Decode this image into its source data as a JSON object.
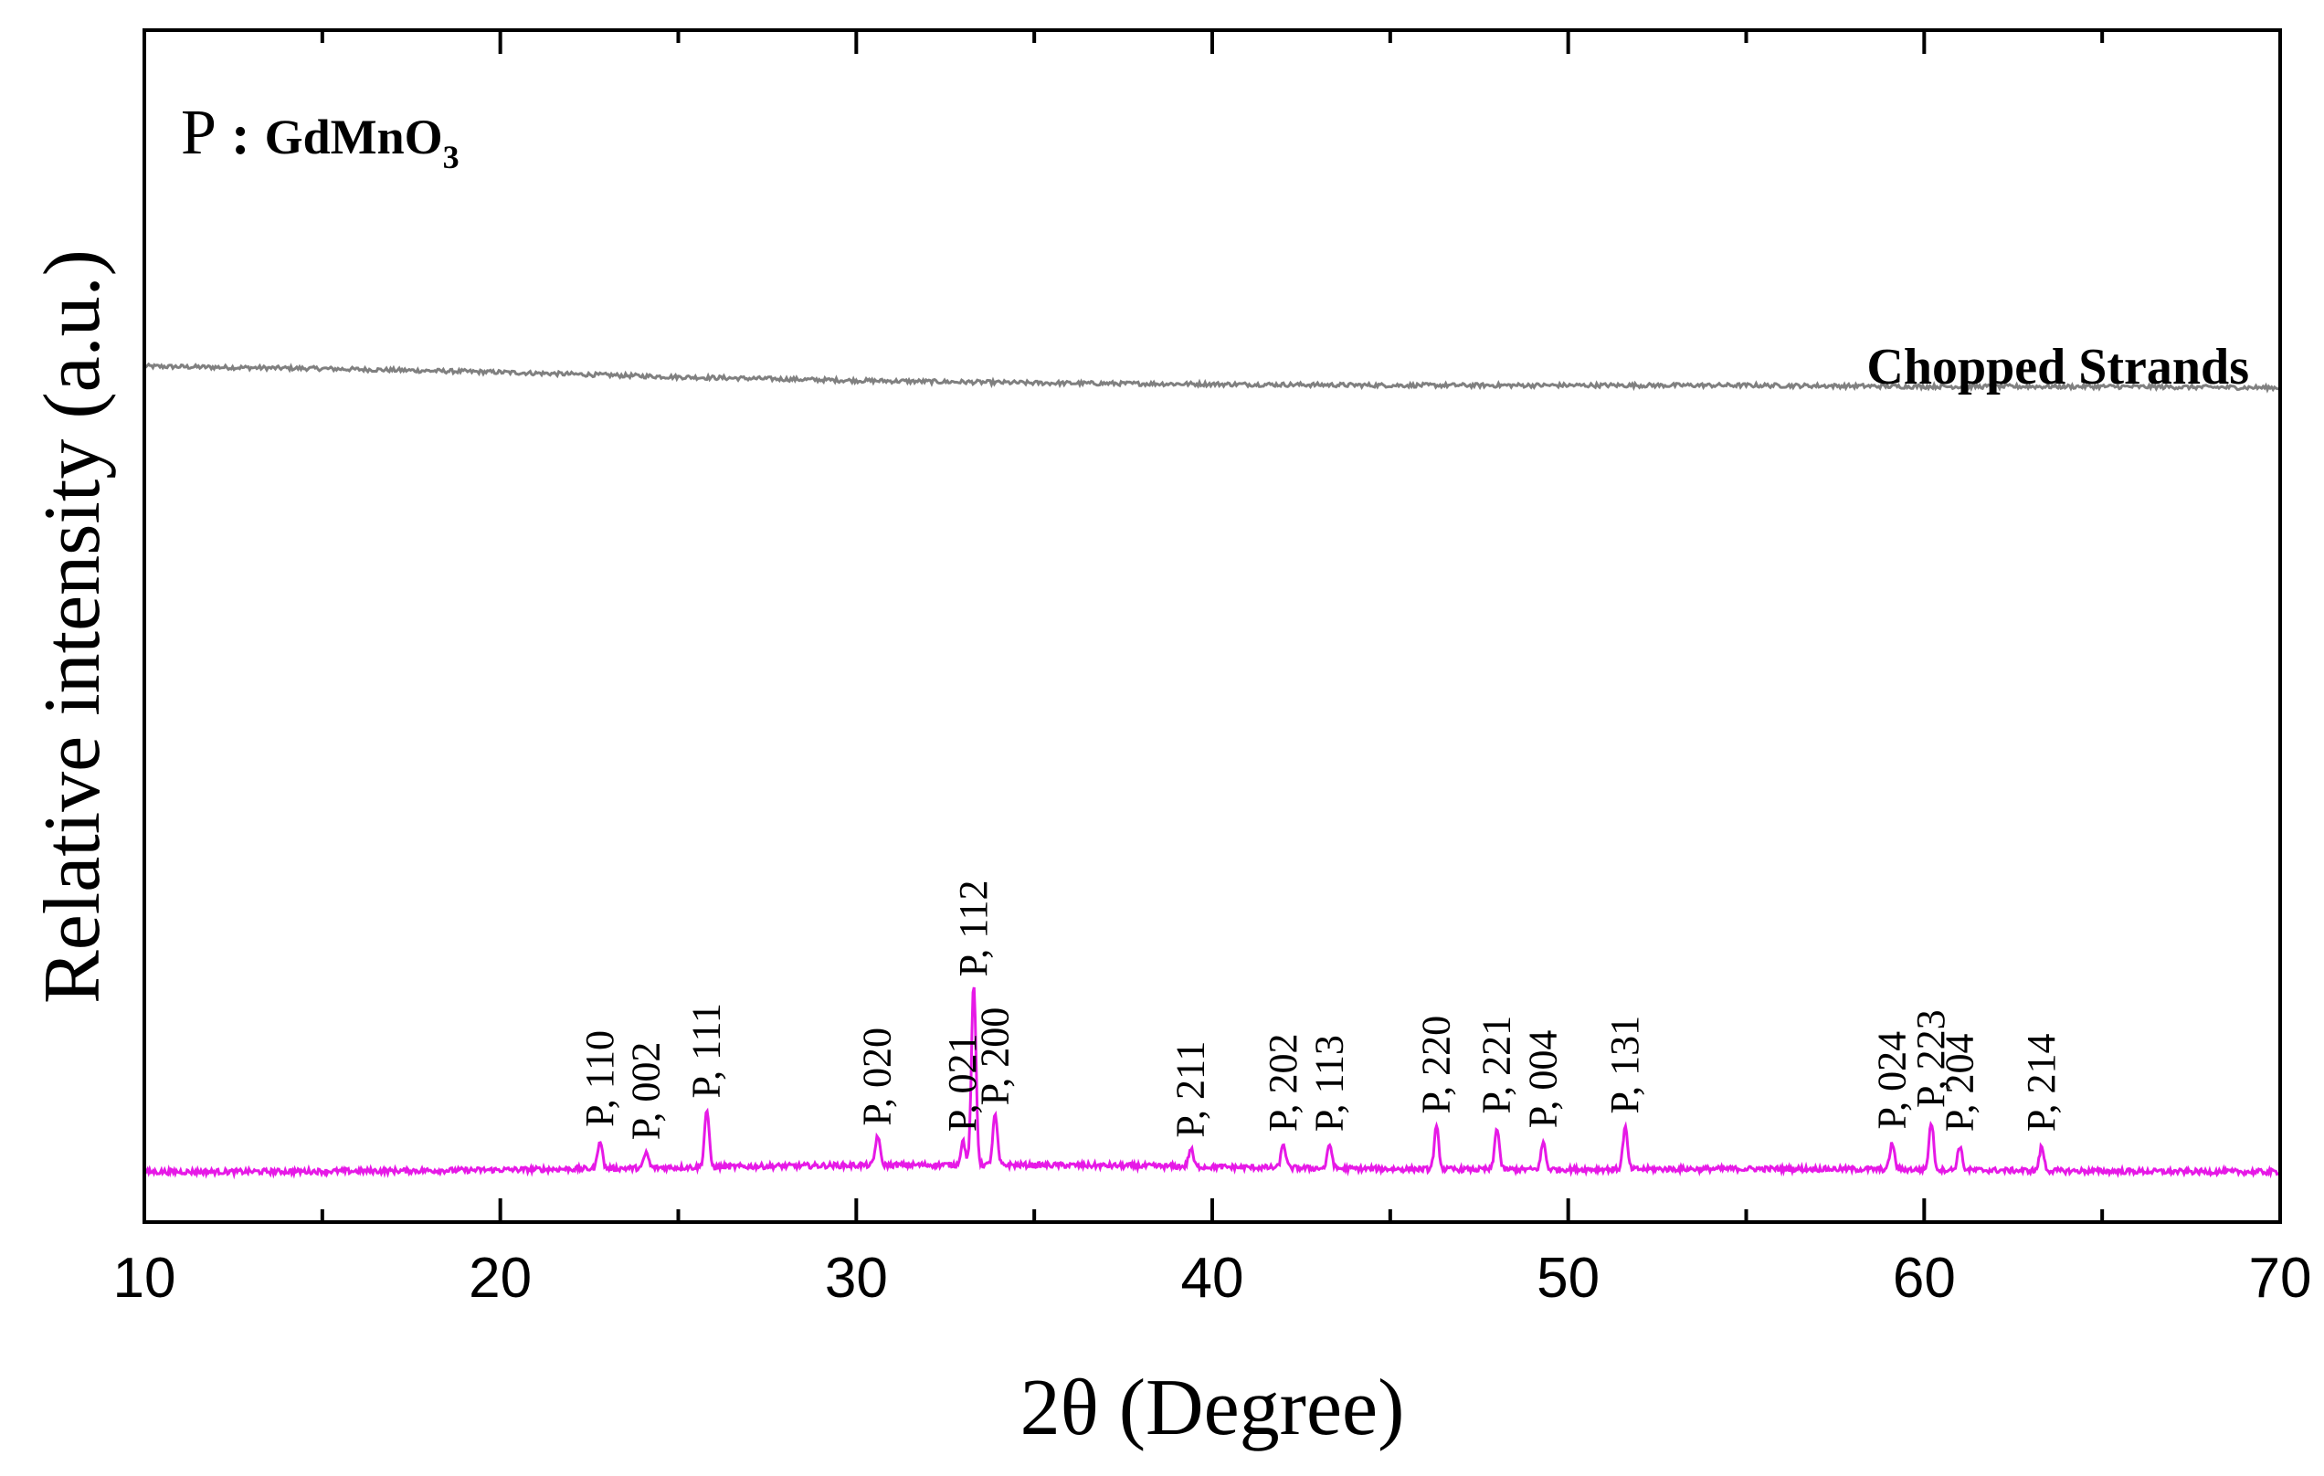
{
  "chart_data": {
    "type": "line",
    "title": "",
    "xlabel": "2θ (Degree)",
    "ylabel": "Relative intensity (a.u.)",
    "xlim": [
      10,
      70
    ],
    "ylim": [
      0,
      100
    ],
    "x_ticks": [
      10,
      20,
      30,
      40,
      50,
      60,
      70
    ],
    "x_minor_ticks": [
      15,
      25,
      35,
      45,
      55,
      65
    ],
    "show_y_tick_labels": false,
    "grid": false,
    "legend": {
      "symbol": "P",
      "separator": ":",
      "compound": "GdMnO",
      "subscript": "3"
    },
    "series": [
      {
        "name": "Chopped Strands",
        "color": "#808080",
        "kind": "amorphous",
        "x": [
          10,
          15,
          20,
          25,
          30,
          35,
          40,
          45,
          50,
          55,
          60,
          65,
          70
        ],
        "y": [
          71.8,
          71.6,
          71.3,
          70.9,
          70.6,
          70.4,
          70.3,
          70.2,
          70.2,
          70.2,
          70.1,
          70.1,
          70.0
        ]
      },
      {
        "name": "GdMnO3",
        "color": "#e619e6",
        "kind": "peaks",
        "baseline": 4.2,
        "peaks": [
          {
            "label": "P, 110",
            "x": 22.8,
            "height": 2.4
          },
          {
            "label": "P, 002",
            "x": 24.1,
            "height": 1.3
          },
          {
            "label": "P, 111",
            "x": 25.8,
            "height": 4.8
          },
          {
            "label": "P, 020",
            "x": 30.6,
            "height": 2.5
          },
          {
            "label": "P, 021",
            "x": 33.0,
            "height": 2.0
          },
          {
            "label": "P, 112",
            "x": 33.3,
            "height": 15.0
          },
          {
            "label": "P, 200",
            "x": 33.9,
            "height": 4.2
          },
          {
            "label": "P, 211",
            "x": 39.4,
            "height": 1.5
          },
          {
            "label": "P, 202",
            "x": 42.0,
            "height": 2.0
          },
          {
            "label": "P, 113",
            "x": 43.3,
            "height": 2.0
          },
          {
            "label": "P, 220",
            "x": 46.3,
            "height": 3.5
          },
          {
            "label": "P, 221",
            "x": 48.0,
            "height": 3.5
          },
          {
            "label": "P, 004",
            "x": 49.3,
            "height": 2.3
          },
          {
            "label": "P, 131",
            "x": 51.6,
            "height": 3.5
          },
          {
            "label": "P, 024",
            "x": 59.1,
            "height": 2.2
          },
          {
            "label": "P, 223",
            "x": 60.2,
            "height": 4.0
          },
          {
            "label": "P, 204",
            "x": 61.0,
            "height": 2.0
          },
          {
            "label": "P, 214",
            "x": 63.3,
            "height": 2.0
          }
        ]
      }
    ]
  }
}
